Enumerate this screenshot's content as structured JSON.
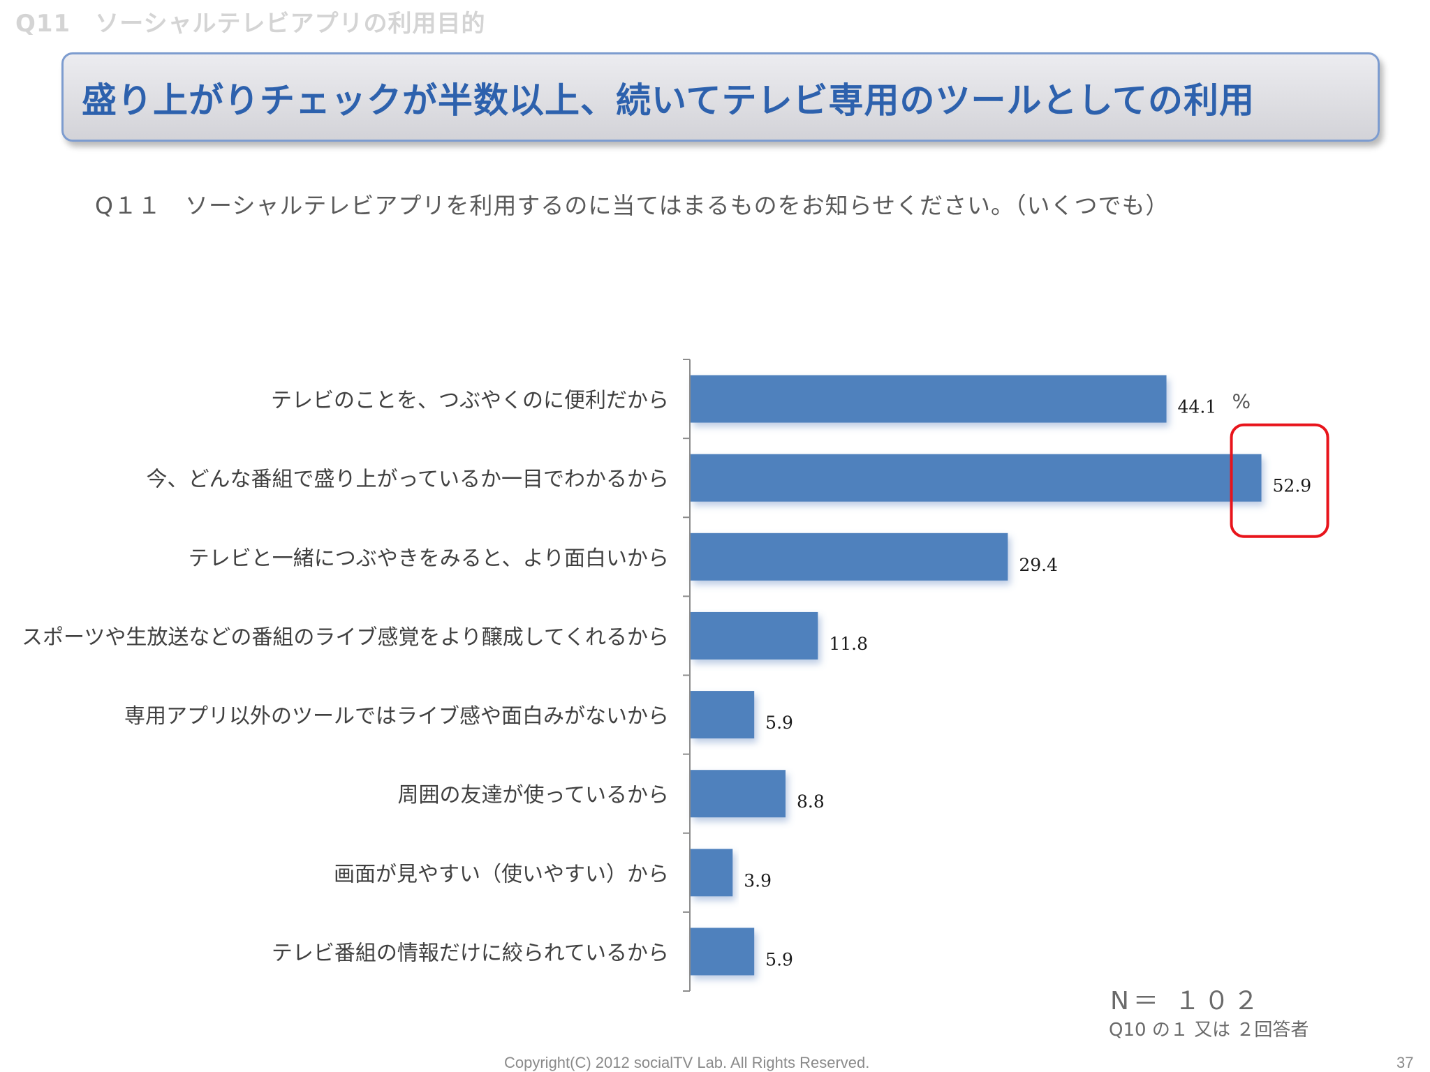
{
  "slide": {
    "section_label": "Q11　ソーシャルテレビアプリの利用目的",
    "headline": "盛り上がりチェックが半数以上、続いてテレビ専用のツールとしての利用",
    "question": "Q１１　ソーシャルテレビアプリを利用するのに当てはまるものをお知らせください。（いくつでも）",
    "sample_size": "N＝ １０２",
    "sample_note": "Q10 の１ 又は ２回答者",
    "copyright": "Copyright(C) 2012 socialTV Lab. All Rights Reserved.",
    "page_number": "37"
  },
  "chart_data": {
    "type": "bar",
    "orientation": "horizontal",
    "unit": "%",
    "categories": [
      "テレビのことを、つぶやくのに便利だから",
      "今、どんな番組で盛り上がっているか一目でわかるから",
      "テレビと一緒につぶやきをみると、より面白いから",
      "スポーツや生放送などの番組のライブ感覚をより醸成してくれるから",
      "専用アプリ以外のツールではライブ感や面白みがないから",
      "周囲の友達が使っているから",
      "画面が見やすい（使いやすい）から",
      "テレビ番組の情報だけに絞られているから"
    ],
    "values": [
      44.1,
      52.9,
      29.4,
      11.8,
      5.9,
      8.8,
      3.9,
      5.9
    ],
    "value_labels": [
      "44.1",
      "52.9",
      "29.4",
      "11.8",
      "5.9",
      "8.8",
      "3.9",
      "5.9"
    ],
    "xlim": [
      0,
      55
    ],
    "bar_color": "#4f81bd",
    "highlight_index": 1,
    "highlight_color": "#e8141b",
    "grid": false
  }
}
